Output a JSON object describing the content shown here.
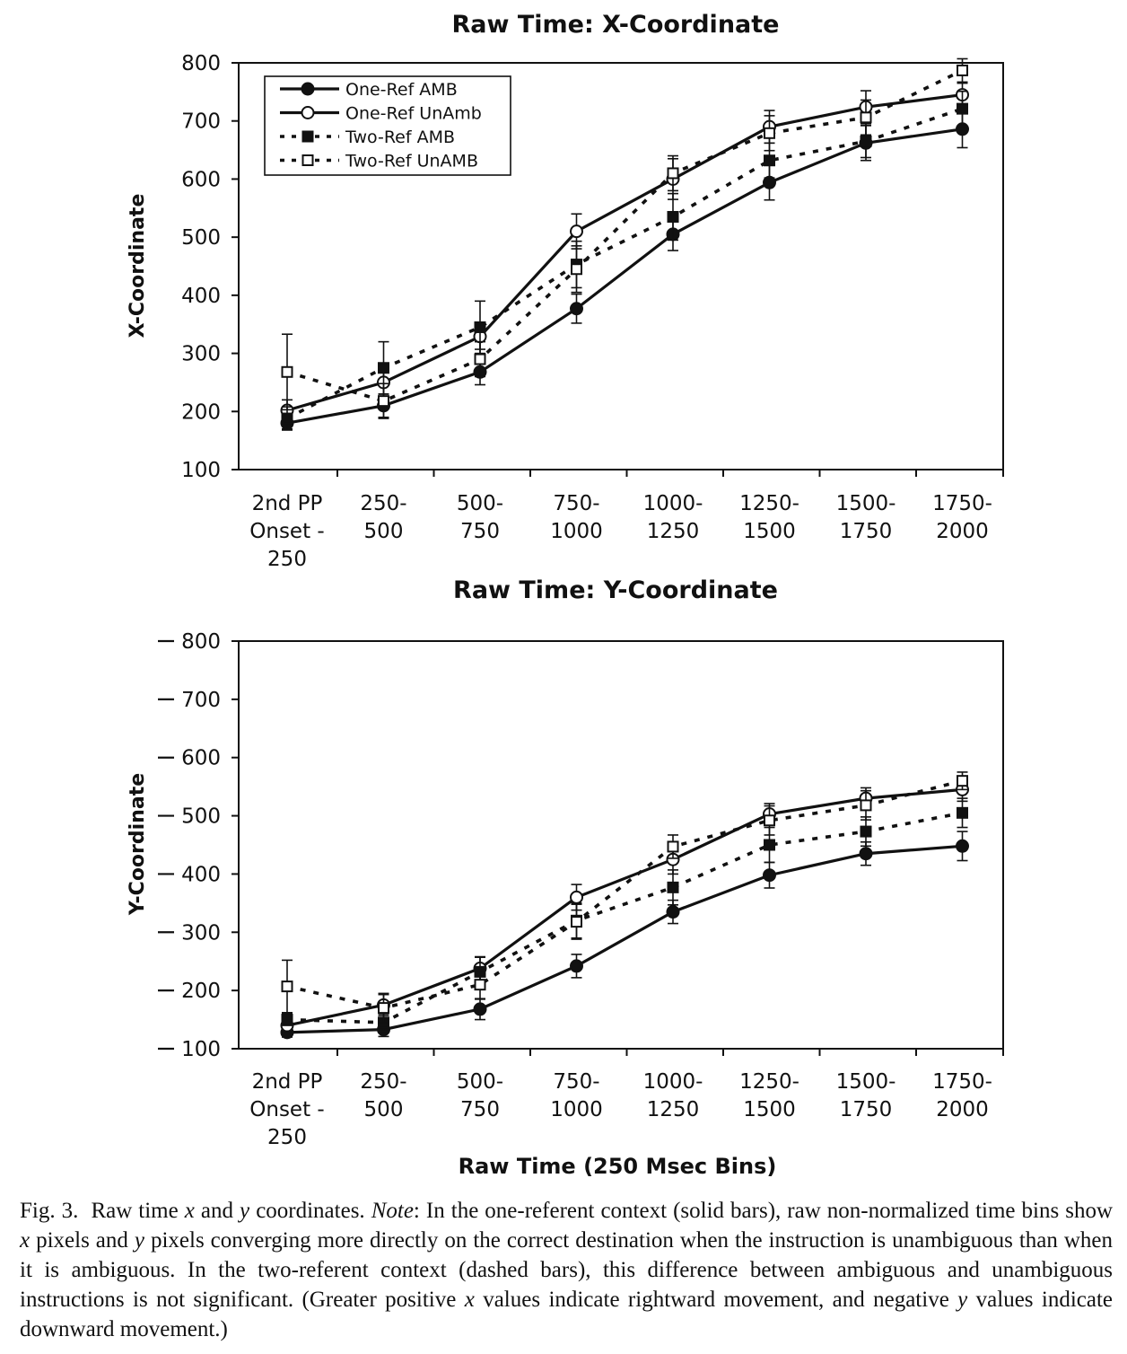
{
  "chart_data": [
    {
      "type": "line",
      "title": "Raw Time: X-Coordinate",
      "ylabel": "X-Coordinate",
      "xlabel": "",
      "ylim": [
        100,
        800
      ],
      "yticks": [
        "100",
        "200",
        "300",
        "400",
        "500",
        "600",
        "700",
        "800"
      ],
      "y_tick_dashes": false,
      "categories": [
        [
          "2nd PP",
          "Onset -",
          "250"
        ],
        [
          "250-",
          "500"
        ],
        [
          "500-",
          "750"
        ],
        [
          "750-",
          "1000"
        ],
        [
          "1000-",
          "1250"
        ],
        [
          "1250-",
          "1500"
        ],
        [
          "1500-",
          "1750"
        ],
        [
          "1750-",
          "2000"
        ]
      ],
      "legend": {
        "position": "top-left"
      },
      "series": [
        {
          "name": "One-Ref AMB",
          "marker": "filled-circle",
          "line": "solid",
          "color": "#111111",
          "values": [
            180,
            210,
            268,
            377,
            505,
            594,
            662,
            686
          ],
          "errors": [
            10,
            20,
            22,
            25,
            28,
            30,
            30,
            32
          ]
        },
        {
          "name": "One-Ref UnAmb",
          "marker": "open-circle",
          "line": "solid",
          "color": "#111111",
          "values": [
            202,
            250,
            329,
            510,
            600,
            690,
            724,
            745
          ],
          "errors": [
            18,
            20,
            22,
            30,
            35,
            28,
            28,
            20
          ]
        },
        {
          "name": "Two-Ref AMB",
          "marker": "filled-square",
          "line": "dotted",
          "color": "#111111",
          "values": [
            188,
            275,
            345,
            453,
            535,
            632,
            665,
            721
          ],
          "errors": [
            20,
            45,
            45,
            40,
            40,
            30,
            28,
            30
          ]
        },
        {
          "name": "Two-Ref UnAMB",
          "marker": "open-square",
          "line": "dotted",
          "color": "#111111",
          "values": [
            268,
            218,
            290,
            445,
            610,
            679,
            706,
            787
          ],
          "errors": [
            65,
            30,
            30,
            40,
            30,
            30,
            30,
            20
          ]
        }
      ]
    },
    {
      "type": "line",
      "title": "Raw Time: Y-Coordinate",
      "ylabel": "Y-Coordinate",
      "xlabel": "Raw Time (250 Msec Bins)",
      "ylim": [
        100,
        800
      ],
      "yticks": [
        "100",
        "200",
        "300",
        "400",
        "500",
        "600",
        "700",
        "800"
      ],
      "y_tick_dashes": true,
      "categories": [
        [
          "2nd PP",
          "Onset -",
          "250"
        ],
        [
          "250-",
          "500"
        ],
        [
          "500-",
          "750"
        ],
        [
          "750-",
          "1000"
        ],
        [
          "1000-",
          "1250"
        ],
        [
          "1250-",
          "1500"
        ],
        [
          "1500-",
          "1750"
        ],
        [
          "1750-",
          "2000"
        ]
      ],
      "series": [
        {
          "name": "One-Ref AMB",
          "marker": "filled-circle",
          "line": "solid",
          "color": "#111111",
          "values": [
            128,
            133,
            168,
            242,
            335,
            398,
            435,
            448
          ],
          "errors": [
            8,
            12,
            18,
            20,
            20,
            22,
            20,
            25
          ]
        },
        {
          "name": "One-Ref UnAmb",
          "marker": "open-circle",
          "line": "solid",
          "color": "#111111",
          "values": [
            140,
            175,
            238,
            360,
            425,
            503,
            530,
            545
          ],
          "errors": [
            12,
            18,
            20,
            22,
            25,
            18,
            18,
            20
          ]
        },
        {
          "name": "Two-Ref AMB",
          "marker": "filled-square",
          "line": "dotted",
          "color": "#111111",
          "values": [
            150,
            145,
            232,
            320,
            377,
            450,
            473,
            505
          ],
          "errors": [
            10,
            15,
            25,
            30,
            30,
            30,
            25,
            25
          ]
        },
        {
          "name": "Two-Ref UnAMB",
          "marker": "open-square",
          "line": "dotted",
          "color": "#111111",
          "values": [
            207,
            170,
            210,
            318,
            447,
            492,
            518,
            560
          ],
          "errors": [
            45,
            25,
            25,
            30,
            20,
            25,
            25,
            15
          ]
        }
      ]
    }
  ],
  "caption": {
    "fig_label": "Fig. 3.",
    "text_1": "Raw time",
    "var_x": "x",
    "text_2": "and",
    "var_y": "y",
    "text_3": "coordinates.",
    "note_label": "Note",
    "text_4": ": In the one-referent context (solid bars), raw non-normalized time bins show",
    "var_x2": "x",
    "text_5": "pixels and",
    "var_y2": "y",
    "text_6": "pixels converging more directly on the correct destination when the instruction is unambiguous than when it is ambiguous. In the two-referent context (dashed bars), this difference between ambiguous and unambiguous instructions is not significant. (Greater positive",
    "var_x3": "x",
    "text_7": "values indicate rightward movement, and negative",
    "var_y3": "y",
    "text_8": "values indicate downward movement.)"
  }
}
